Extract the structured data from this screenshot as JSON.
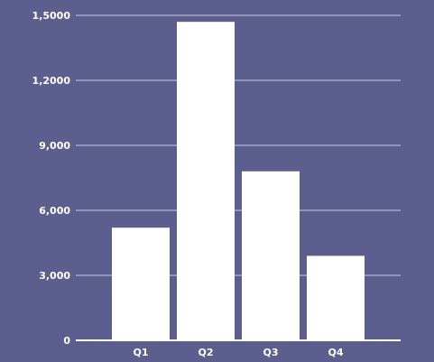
{
  "colors": {
    "background": "#5c5f8d",
    "bar": "#ffffff",
    "gridline": "#c9cae0",
    "text": "#ffffff"
  },
  "chart_data": {
    "type": "bar",
    "title": "",
    "xlabel": "",
    "ylabel": "",
    "categories": [
      "Q1",
      "Q2",
      "Q3",
      "Q4"
    ],
    "values": [
      5200,
      14700,
      7800,
      3900
    ],
    "ylim": [
      0,
      15000
    ],
    "yticks": [
      0,
      3000,
      6000,
      9000,
      12000,
      15000
    ],
    "ytick_labels": [
      "0",
      "3,000",
      "6,000",
      "9,000",
      "1,2000",
      "1,5000"
    ],
    "grid": true,
    "legend": "none"
  }
}
